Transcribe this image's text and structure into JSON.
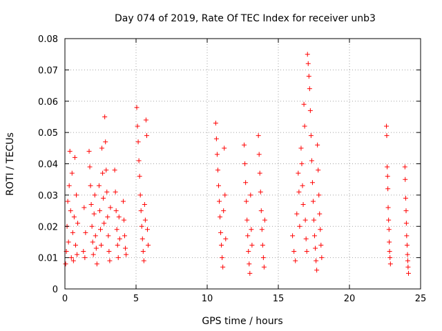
{
  "chart_data": {
    "type": "scatter",
    "title": "Day 074 of 2019, Rate Of TEC Index for receiver unb3",
    "xlabel": "GPS time / hours",
    "ylabel": "ROTI / TECUs",
    "xlim": [
      0,
      25
    ],
    "ylim": [
      0,
      0.08
    ],
    "xticks": [
      0,
      5,
      10,
      15,
      20,
      25
    ],
    "xtick_labels": [
      "0",
      "5",
      "10",
      "15",
      "20",
      "25"
    ],
    "yticks": [
      0,
      0.01,
      0.02,
      0.03,
      0.04,
      0.05,
      0.06,
      0.07,
      0.08
    ],
    "ytick_labels": [
      "0",
      "0.01",
      "0.02",
      "0.03",
      "0.04",
      "0.05",
      "0.06",
      "0.07",
      "0.08"
    ],
    "grid": true,
    "marker": "+",
    "color": "#ff0000",
    "series": [
      {
        "name": "ROTI",
        "points": [
          [
            0.05,
            0.008
          ],
          [
            0.1,
            0.012
          ],
          [
            0.15,
            0.02
          ],
          [
            0.2,
            0.028
          ],
          [
            0.25,
            0.015
          ],
          [
            0.3,
            0.033
          ],
          [
            0.35,
            0.044
          ],
          [
            0.4,
            0.025
          ],
          [
            0.45,
            0.01
          ],
          [
            0.5,
            0.037
          ],
          [
            0.55,
            0.018
          ],
          [
            0.6,
            0.009
          ],
          [
            0.65,
            0.023
          ],
          [
            0.7,
            0.042
          ],
          [
            0.75,
            0.014
          ],
          [
            0.8,
            0.03
          ],
          [
            0.85,
            0.011
          ],
          [
            0.9,
            0.021
          ],
          [
            1.3,
            0.012
          ],
          [
            1.35,
            0.026
          ],
          [
            1.4,
            0.01
          ],
          [
            1.45,
            0.018
          ],
          [
            1.7,
            0.044
          ],
          [
            1.75,
            0.039
          ],
          [
            1.8,
            0.033
          ],
          [
            1.85,
            0.027
          ],
          [
            1.9,
            0.02
          ],
          [
            1.95,
            0.015
          ],
          [
            2.0,
            0.011
          ],
          [
            2.05,
            0.024
          ],
          [
            2.1,
            0.03
          ],
          [
            2.15,
            0.017
          ],
          [
            2.2,
            0.013
          ],
          [
            2.25,
            0.008
          ],
          [
            2.4,
            0.033
          ],
          [
            2.45,
            0.025
          ],
          [
            2.5,
            0.019
          ],
          [
            2.55,
            0.014
          ],
          [
            2.6,
            0.045
          ],
          [
            2.65,
            0.037
          ],
          [
            2.7,
            0.029
          ],
          [
            2.75,
            0.021
          ],
          [
            2.8,
            0.055
          ],
          [
            2.85,
            0.047
          ],
          [
            2.9,
            0.038
          ],
          [
            2.95,
            0.031
          ],
          [
            3.0,
            0.023
          ],
          [
            3.05,
            0.017
          ],
          [
            3.1,
            0.012
          ],
          [
            3.15,
            0.009
          ],
          [
            3.2,
            0.026
          ],
          [
            3.5,
            0.038
          ],
          [
            3.55,
            0.031
          ],
          [
            3.6,
            0.025
          ],
          [
            3.65,
            0.019
          ],
          [
            3.7,
            0.014
          ],
          [
            3.75,
            0.01
          ],
          [
            3.8,
            0.023
          ],
          [
            3.85,
            0.016
          ],
          [
            4.1,
            0.028
          ],
          [
            4.15,
            0.022
          ],
          [
            4.2,
            0.017
          ],
          [
            4.25,
            0.013
          ],
          [
            4.3,
            0.011
          ],
          [
            5.05,
            0.058
          ],
          [
            5.1,
            0.052
          ],
          [
            5.15,
            0.047
          ],
          [
            5.2,
            0.041
          ],
          [
            5.25,
            0.036
          ],
          [
            5.3,
            0.03
          ],
          [
            5.35,
            0.025
          ],
          [
            5.4,
            0.02
          ],
          [
            5.45,
            0.016
          ],
          [
            5.5,
            0.012
          ],
          [
            5.55,
            0.009
          ],
          [
            5.6,
            0.027
          ],
          [
            5.65,
            0.022
          ],
          [
            5.7,
            0.054
          ],
          [
            5.75,
            0.049
          ],
          [
            5.8,
            0.019
          ],
          [
            5.85,
            0.014
          ],
          [
            10.6,
            0.053
          ],
          [
            10.65,
            0.048
          ],
          [
            10.7,
            0.043
          ],
          [
            10.75,
            0.038
          ],
          [
            10.8,
            0.033
          ],
          [
            10.85,
            0.028
          ],
          [
            10.9,
            0.023
          ],
          [
            10.95,
            0.018
          ],
          [
            11.0,
            0.014
          ],
          [
            11.05,
            0.01
          ],
          [
            11.1,
            0.007
          ],
          [
            11.15,
            0.025
          ],
          [
            11.2,
            0.045
          ],
          [
            11.25,
            0.03
          ],
          [
            11.3,
            0.016
          ],
          [
            12.6,
            0.046
          ],
          [
            12.65,
            0.04
          ],
          [
            12.7,
            0.034
          ],
          [
            12.75,
            0.028
          ],
          [
            12.8,
            0.022
          ],
          [
            12.85,
            0.017
          ],
          [
            12.9,
            0.012
          ],
          [
            12.95,
            0.008
          ],
          [
            13.0,
            0.005
          ],
          [
            13.05,
            0.03
          ],
          [
            13.1,
            0.019
          ],
          [
            13.15,
            0.014
          ],
          [
            13.6,
            0.049
          ],
          [
            13.65,
            0.043
          ],
          [
            13.7,
            0.037
          ],
          [
            13.75,
            0.031
          ],
          [
            13.8,
            0.025
          ],
          [
            13.85,
            0.019
          ],
          [
            13.9,
            0.014
          ],
          [
            13.95,
            0.01
          ],
          [
            14.0,
            0.007
          ],
          [
            14.05,
            0.022
          ],
          [
            16.0,
            0.017
          ],
          [
            16.1,
            0.012
          ],
          [
            16.2,
            0.009
          ],
          [
            16.3,
            0.024
          ],
          [
            16.4,
            0.037
          ],
          [
            16.45,
            0.031
          ],
          [
            16.5,
            0.02
          ],
          [
            16.6,
            0.045
          ],
          [
            16.65,
            0.04
          ],
          [
            16.7,
            0.033
          ],
          [
            16.75,
            0.027
          ],
          [
            16.8,
            0.059
          ],
          [
            16.85,
            0.052
          ],
          [
            16.9,
            0.022
          ],
          [
            16.95,
            0.016
          ],
          [
            17.0,
            0.012
          ],
          [
            17.05,
            0.075
          ],
          [
            17.1,
            0.072
          ],
          [
            17.15,
            0.068
          ],
          [
            17.2,
            0.064
          ],
          [
            17.25,
            0.057
          ],
          [
            17.3,
            0.049
          ],
          [
            17.35,
            0.041
          ],
          [
            17.4,
            0.034
          ],
          [
            17.45,
            0.028
          ],
          [
            17.5,
            0.022
          ],
          [
            17.55,
            0.017
          ],
          [
            17.6,
            0.013
          ],
          [
            17.65,
            0.009
          ],
          [
            17.7,
            0.006
          ],
          [
            17.75,
            0.046
          ],
          [
            17.8,
            0.038
          ],
          [
            17.85,
            0.03
          ],
          [
            17.9,
            0.024
          ],
          [
            17.95,
            0.019
          ],
          [
            18.0,
            0.014
          ],
          [
            18.05,
            0.01
          ],
          [
            22.6,
            0.052
          ],
          [
            22.62,
            0.049
          ],
          [
            22.65,
            0.039
          ],
          [
            22.68,
            0.036
          ],
          [
            22.7,
            0.032
          ],
          [
            22.72,
            0.026
          ],
          [
            22.75,
            0.022
          ],
          [
            22.78,
            0.019
          ],
          [
            22.8,
            0.015
          ],
          [
            22.82,
            0.012
          ],
          [
            22.85,
            0.01
          ],
          [
            22.88,
            0.008
          ],
          [
            23.9,
            0.039
          ],
          [
            23.92,
            0.035
          ],
          [
            23.95,
            0.029
          ],
          [
            23.98,
            0.025
          ],
          [
            24.0,
            0.021
          ],
          [
            24.02,
            0.017
          ],
          [
            24.05,
            0.014
          ],
          [
            24.08,
            0.011
          ],
          [
            24.1,
            0.009
          ],
          [
            24.12,
            0.007
          ],
          [
            24.15,
            0.005
          ]
        ]
      }
    ]
  }
}
